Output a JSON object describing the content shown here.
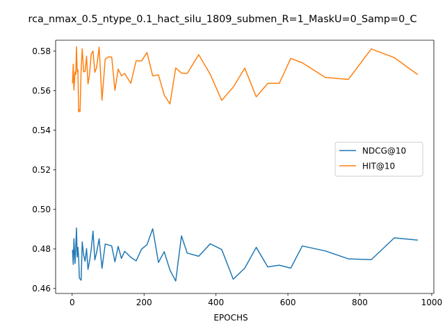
{
  "chart_data": {
    "type": "line",
    "title": "rca_nmax_0.5_ntype_0.1_hact_silu_1809_submen_R=1_MaskU=0_Samp=0_C",
    "xlabel": "EPOCHS",
    "ylabel": "",
    "xlim": [
      -46,
      1006
    ],
    "ylim": [
      0.4575,
      0.5855
    ],
    "xticks": [
      0,
      200,
      400,
      600,
      800,
      1000
    ],
    "xtick_labels": [
      "0",
      "200",
      "400",
      "600",
      "800",
      "1000"
    ],
    "yticks": [
      0.46,
      0.48,
      0.5,
      0.52,
      0.54,
      0.56,
      0.58
    ],
    "ytick_labels": [
      "0.46",
      "0.48",
      "0.50",
      "0.52",
      "0.54",
      "0.56",
      "0.58"
    ],
    "grid": false,
    "legend_position": "center-right",
    "x": [
      1,
      3,
      5,
      8,
      10,
      12,
      14,
      16,
      18,
      20,
      22,
      25,
      28,
      32,
      36,
      40,
      44,
      48,
      53,
      58,
      63,
      68,
      75,
      83,
      92,
      101,
      110,
      119,
      128,
      137,
      146,
      163,
      178,
      193,
      208,
      224,
      240,
      256,
      272,
      288,
      304,
      320,
      352,
      384,
      416,
      448,
      480,
      512,
      544,
      576,
      608,
      640,
      704,
      768,
      832,
      896,
      960
    ],
    "series": [
      {
        "name": "NDCG@10",
        "color": "#1f77b4",
        "values": [
          0.4793,
          0.4722,
          0.4852,
          0.4727,
          0.4808,
          0.4906,
          0.4759,
          0.4808,
          0.4758,
          0.4654,
          0.4648,
          0.4642,
          0.4836,
          0.4768,
          0.4738,
          0.4802,
          0.4697,
          0.4735,
          0.4797,
          0.489,
          0.4745,
          0.4782,
          0.4852,
          0.4702,
          0.4825,
          0.482,
          0.4815,
          0.4735,
          0.4813,
          0.4752,
          0.4788,
          0.4758,
          0.474,
          0.4799,
          0.4821,
          0.4902,
          0.4732,
          0.4786,
          0.4693,
          0.4638,
          0.4866,
          0.4779,
          0.4763,
          0.4826,
          0.4797,
          0.4647,
          0.4703,
          0.4808,
          0.4709,
          0.4718,
          0.4703,
          0.4815,
          0.479,
          0.475,
          0.4746,
          0.4856,
          0.4845
        ]
      },
      {
        "name": "HIT@10",
        "color": "#ff7f0e",
        "values": [
          0.5639,
          0.5734,
          0.5603,
          0.5695,
          0.5682,
          0.5822,
          0.5694,
          0.5706,
          0.5493,
          0.5503,
          0.5495,
          0.5708,
          0.5812,
          0.5695,
          0.5698,
          0.5774,
          0.5634,
          0.5678,
          0.5784,
          0.5801,
          0.5693,
          0.5717,
          0.582,
          0.5552,
          0.576,
          0.5771,
          0.577,
          0.5602,
          0.5709,
          0.5675,
          0.5687,
          0.5637,
          0.5752,
          0.575,
          0.5793,
          0.5675,
          0.568,
          0.5578,
          0.5533,
          0.5715,
          0.5689,
          0.5687,
          0.5782,
          0.5683,
          0.5551,
          0.5618,
          0.5714,
          0.5569,
          0.5637,
          0.5637,
          0.5763,
          0.5741,
          0.5667,
          0.5657,
          0.5811,
          0.5767,
          0.5683
        ]
      }
    ]
  }
}
